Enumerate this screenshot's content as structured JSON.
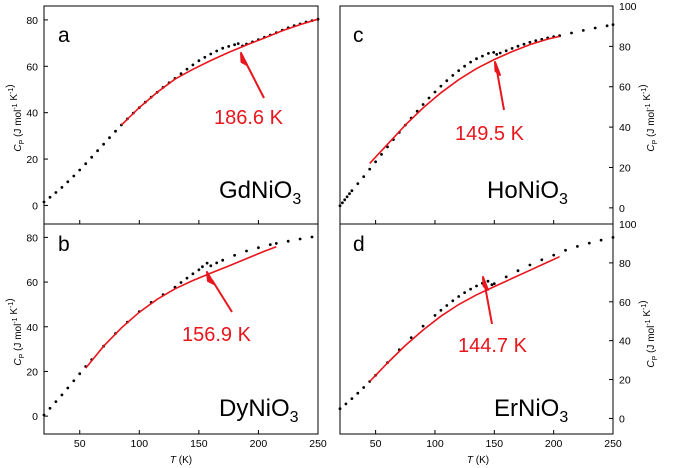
{
  "figure": {
    "xlabel": "T (K)",
    "ylabel": "C_P (J mol-1 K-1)",
    "colors": {
      "data": "#000000",
      "fit": "#e8161d",
      "annotation": "#e8161d",
      "frame": "#000000"
    }
  },
  "chart_data": [
    {
      "type": "scatter",
      "panel": "a",
      "compound": "GdNiO3",
      "annotation": "186.6 K",
      "transition_T": 186.6,
      "xlim": [
        20,
        250
      ],
      "ylim": [
        -8,
        86
      ],
      "xticks": [
        50,
        100,
        150,
        200,
        250
      ],
      "yticks": [
        0,
        20,
        40,
        60,
        80
      ],
      "y_axis_side": "left",
      "show_xtick_labels": false,
      "grid": false,
      "series": [
        {
          "style": "points",
          "x": [
            20,
            25,
            30,
            35,
            40,
            45,
            50,
            55,
            60,
            65,
            70,
            75,
            80,
            85,
            90,
            95,
            100,
            105,
            110,
            115,
            120,
            125,
            130,
            135,
            140,
            145,
            150,
            155,
            160,
            165,
            170,
            175,
            180,
            183,
            186.6,
            190,
            195,
            200,
            205,
            210,
            215,
            220,
            225,
            230,
            235,
            240,
            245,
            250
          ],
          "y": [
            1.5,
            3.5,
            5.6,
            7.8,
            10.2,
            12.7,
            15.3,
            18.0,
            20.8,
            23.6,
            26.4,
            29.2,
            32.0,
            34.7,
            37.3,
            39.8,
            42.2,
            44.5,
            46.7,
            48.8,
            50.9,
            52.9,
            54.8,
            56.8,
            58.8,
            60.6,
            62.4,
            63.9,
            65.3,
            66.6,
            67.8,
            68.6,
            69.3,
            69.8,
            68.8,
            69.6,
            70.5,
            71.5,
            72.5,
            73.5,
            74.5,
            75.6,
            76.6,
            77.5,
            78.3,
            79.1,
            79.7,
            80.3
          ]
        },
        {
          "style": "line",
          "x": [
            85,
            100,
            115,
            130,
            145,
            160,
            175,
            190,
            205,
            220,
            235,
            250
          ],
          "y": [
            34.7,
            42.2,
            48.8,
            54.5,
            58.7,
            62.5,
            66.0,
            69.2,
            72.2,
            75.3,
            78.0,
            80.3
          ]
        }
      ]
    },
    {
      "type": "scatter",
      "panel": "b",
      "compound": "DyNiO3",
      "annotation": "156.9 K",
      "transition_T": 156.9,
      "xlim": [
        20,
        250
      ],
      "ylim": [
        -8,
        86
      ],
      "xticks": [
        50,
        100,
        150,
        200,
        250
      ],
      "yticks": [
        0,
        20,
        40,
        60,
        80
      ],
      "y_axis_side": "left",
      "show_xtick_labels": true,
      "grid": false,
      "series": [
        {
          "style": "points",
          "x": [
            20,
            25,
            30,
            35,
            40,
            45,
            50,
            55,
            60,
            70,
            80,
            90,
            100,
            110,
            120,
            130,
            135,
            140,
            145,
            150,
            153,
            156.9,
            160,
            165,
            170,
            180,
            190,
            200,
            210,
            215,
            225,
            235,
            245
          ],
          "y": [
            0.5,
            3.5,
            6.5,
            9.5,
            12.6,
            15.8,
            19.0,
            22.2,
            25.3,
            31.3,
            37.0,
            42.1,
            46.8,
            50.9,
            54.4,
            57.7,
            59.8,
            61.8,
            63.7,
            65.5,
            66.9,
            68.5,
            67.3,
            68.6,
            69.8,
            72.0,
            73.9,
            75.4,
            76.8,
            77.3,
            78.3,
            79.3,
            80.2
          ]
        },
        {
          "style": "line",
          "x": [
            55,
            70,
            85,
            100,
            115,
            130,
            145,
            160,
            175,
            190,
            205,
            215
          ],
          "y": [
            21.5,
            31.3,
            39.5,
            46.5,
            52.3,
            57.0,
            60.7,
            64.0,
            67.2,
            70.5,
            73.8,
            75.8
          ]
        }
      ]
    },
    {
      "type": "scatter",
      "panel": "c",
      "compound": "HoNiO3",
      "annotation": "149.5 K",
      "transition_T": 149.5,
      "xlim": [
        20,
        250
      ],
      "ylim": [
        -8,
        100
      ],
      "xticks": [
        50,
        100,
        150,
        200,
        250
      ],
      "yticks": [
        0,
        20,
        40,
        60,
        80,
        100
      ],
      "y_axis_side": "right",
      "show_xtick_labels": false,
      "grid": false,
      "series": [
        {
          "style": "points",
          "x": [
            20,
            22,
            24,
            26,
            28,
            30,
            35,
            40,
            45,
            50,
            55,
            60,
            65,
            70,
            75,
            80,
            85,
            90,
            95,
            100,
            105,
            110,
            115,
            120,
            125,
            130,
            135,
            140,
            145,
            149.5,
            152,
            155,
            160,
            165,
            170,
            175,
            180,
            185,
            190,
            195,
            200,
            205,
            215,
            225,
            235,
            245,
            250
          ],
          "y": [
            1.0,
            2.5,
            4.0,
            5.5,
            7.0,
            8.5,
            12.0,
            15.5,
            19.2,
            22.8,
            26.5,
            30.2,
            33.8,
            37.4,
            41.0,
            44.5,
            47.9,
            51.2,
            54.4,
            57.4,
            60.3,
            63.0,
            65.6,
            68.0,
            70.2,
            72.2,
            73.9,
            75.2,
            76.5,
            77.0,
            76.0,
            76.7,
            77.8,
            79.0,
            80.1,
            81.1,
            82.0,
            82.8,
            83.5,
            84.2,
            84.8,
            85.3,
            86.6,
            87.9,
            89.1,
            90.2,
            90.8
          ]
        },
        {
          "style": "line",
          "x": [
            45,
            60,
            75,
            90,
            105,
            120,
            135,
            150,
            165,
            180,
            195,
            205
          ],
          "y": [
            22.0,
            31.5,
            41.0,
            49.5,
            57.0,
            63.5,
            69.0,
            73.5,
            77.4,
            80.9,
            83.6,
            85.0
          ]
        }
      ]
    },
    {
      "type": "scatter",
      "panel": "d",
      "compound": "ErNiO3",
      "annotation": "144.7 K",
      "transition_T": 144.7,
      "xlim": [
        20,
        250
      ],
      "ylim": [
        -8,
        100
      ],
      "xticks": [
        50,
        100,
        150,
        200,
        250
      ],
      "yticks": [
        0,
        20,
        40,
        60,
        80,
        100
      ],
      "y_axis_side": "right",
      "show_xtick_labels": true,
      "grid": false,
      "series": [
        {
          "style": "points",
          "x": [
            20,
            25,
            30,
            35,
            40,
            45,
            50,
            60,
            70,
            80,
            90,
            100,
            105,
            110,
            115,
            120,
            125,
            130,
            135,
            140,
            144.7,
            148,
            150,
            160,
            170,
            180,
            190,
            200,
            210,
            220,
            230,
            240,
            250
          ],
          "y": [
            5.0,
            7.5,
            10.2,
            13.0,
            15.9,
            19.0,
            22.2,
            28.7,
            35.3,
            41.6,
            47.5,
            53.0,
            55.6,
            58.1,
            60.5,
            62.7,
            64.7,
            66.5,
            68.1,
            69.5,
            70.6,
            68.8,
            69.3,
            72.8,
            76.0,
            78.9,
            81.6,
            84.0,
            86.5,
            88.5,
            90.2,
            91.7,
            93.1
          ]
        },
        {
          "style": "line",
          "x": [
            45,
            60,
            75,
            90,
            105,
            120,
            135,
            150,
            165,
            180,
            195,
            205
          ],
          "y": [
            19.0,
            28.5,
            37.5,
            45.5,
            52.6,
            58.6,
            63.6,
            67.8,
            72.0,
            76.2,
            80.4,
            83.2
          ]
        }
      ]
    }
  ]
}
